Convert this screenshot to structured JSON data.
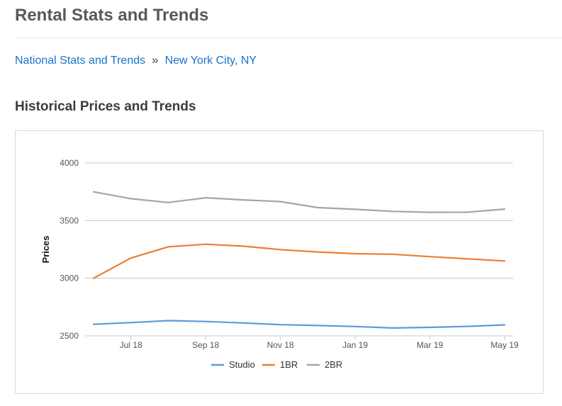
{
  "page": {
    "title": "Rental Stats and Trends",
    "section_title": "Historical Prices and Trends"
  },
  "breadcrumb": {
    "items": [
      {
        "label": "National Stats and Trends"
      },
      {
        "label": "New York City, NY"
      }
    ],
    "separator": "»"
  },
  "colors": {
    "link": "#1a73c8",
    "studio": "#5b9bd5",
    "1br": "#ed7d31",
    "2br": "#a5a5a5",
    "grid": "#c8c8c8"
  },
  "chart_data": {
    "type": "line",
    "x": [
      "2018-06",
      "2018-07",
      "2018-08",
      "2018-09",
      "2018-10",
      "2018-11",
      "2018-12",
      "2019-01",
      "2019-02",
      "2019-03",
      "2019-04",
      "2019-05"
    ],
    "x_tick_labels": [
      "Jul 18",
      "Sep 18",
      "Nov 18",
      "Jan 19",
      "Mar 19",
      "May 19"
    ],
    "x_tick_positions": [
      "2018-07",
      "2018-09",
      "2018-11",
      "2019-01",
      "2019-03",
      "2019-05"
    ],
    "series": [
      {
        "name": "Studio",
        "color": "#5b9bd5",
        "values": [
          2600,
          2615,
          2632,
          2625,
          2612,
          2597,
          2590,
          2581,
          2568,
          2574,
          2582,
          2595
        ]
      },
      {
        "name": "1BR",
        "color": "#ed7d31",
        "values": [
          3000,
          3175,
          3273,
          3295,
          3278,
          3248,
          3228,
          3213,
          3208,
          3187,
          3168,
          3150
        ]
      },
      {
        "name": "2BR",
        "color": "#a5a5a5",
        "values": [
          3750,
          3690,
          3657,
          3698,
          3680,
          3665,
          3613,
          3598,
          3580,
          3572,
          3573,
          3600
        ]
      }
    ],
    "ylabel": "Prices",
    "xlabel": "",
    "ylim": [
      2500,
      4000
    ],
    "y_ticks": [
      2500,
      3000,
      3500,
      4000
    ],
    "grid": true,
    "legend_position": "bottom"
  }
}
